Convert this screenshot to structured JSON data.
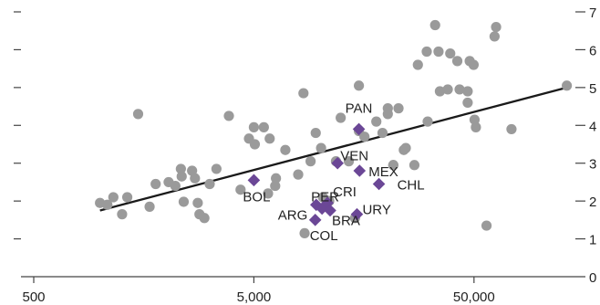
{
  "chart_data": {
    "type": "scatter",
    "title": "",
    "xlabel": "",
    "ylabel": "",
    "x_scale": "log",
    "xlim": [
      500,
      150000
    ],
    "ylim": [
      0,
      7
    ],
    "x_ticks": [
      {
        "value": 500,
        "label": "500"
      },
      {
        "value": 5000,
        "label": "5,000"
      },
      {
        "value": 50000,
        "label": "50,000"
      }
    ],
    "y_ticks": [
      0,
      1,
      2,
      3,
      4,
      5,
      6,
      7
    ],
    "y_tick_labels": [
      "0",
      "1",
      "2",
      "3",
      "4",
      "5",
      "6",
      "7"
    ],
    "left_axis_ticks": [
      1,
      2,
      3,
      4,
      5,
      6,
      7
    ],
    "grid": false,
    "colors": {
      "other": "#9a9a9a",
      "highlight": "#6b4796",
      "trend": "#1a1a1a",
      "axis": "#444444"
    },
    "series": [
      {
        "marker": "circle",
        "points": [
          [
            1000,
            1.95
          ],
          [
            1080,
            1.9
          ],
          [
            1150,
            2.1
          ],
          [
            1260,
            1.65
          ],
          [
            1330,
            2.1
          ],
          [
            1490,
            4.3
          ],
          [
            1680,
            1.85
          ],
          [
            1790,
            2.45
          ],
          [
            2050,
            2.5
          ],
          [
            2200,
            2.4
          ],
          [
            2330,
            2.85
          ],
          [
            2350,
            2.65
          ],
          [
            2620,
            2.8
          ],
          [
            2700,
            2.6
          ],
          [
            2400,
            1.98
          ],
          [
            2780,
            1.95
          ],
          [
            2830,
            1.65
          ],
          [
            2980,
            1.55
          ],
          [
            3150,
            2.45
          ],
          [
            3380,
            2.85
          ],
          [
            3850,
            4.25
          ],
          [
            4350,
            2.3
          ],
          [
            4750,
            3.65
          ],
          [
            5000,
            3.95
          ],
          [
            5050,
            3.5
          ],
          [
            5550,
            3.95
          ],
          [
            5800,
            2.2
          ],
          [
            5900,
            3.65
          ],
          [
            6250,
            2.4
          ],
          [
            6300,
            2.6
          ],
          [
            6950,
            3.35
          ],
          [
            7950,
            2.7
          ],
          [
            8400,
            4.85
          ],
          [
            8500,
            1.15
          ],
          [
            9050,
            3.05
          ],
          [
            9550,
            3.8
          ],
          [
            10100,
            3.4
          ],
          [
            10300,
            2.1
          ],
          [
            11000,
            2.0
          ],
          [
            11800,
            3.05
          ],
          [
            12400,
            4.2
          ],
          [
            13500,
            3.05
          ],
          [
            15000,
            5.05
          ],
          [
            15000,
            3.85
          ],
          [
            15900,
            3.7
          ],
          [
            14400,
            1.55
          ],
          [
            18000,
            4.1
          ],
          [
            19200,
            3.8
          ],
          [
            20300,
            4.45
          ],
          [
            20300,
            4.3
          ],
          [
            21500,
            2.95
          ],
          [
            21500,
            2.95
          ],
          [
            22700,
            4.45
          ],
          [
            24000,
            3.35
          ],
          [
            24500,
            3.4
          ],
          [
            26800,
            2.95
          ],
          [
            27800,
            5.6
          ],
          [
            30500,
            5.95
          ],
          [
            30800,
            4.1
          ],
          [
            33300,
            6.65
          ],
          [
            34500,
            5.95
          ],
          [
            35000,
            4.9
          ],
          [
            38000,
            4.95
          ],
          [
            39000,
            5.9
          ],
          [
            42000,
            5.7
          ],
          [
            43000,
            4.95
          ],
          [
            46800,
            4.9
          ],
          [
            46800,
            4.6
          ],
          [
            47800,
            5.7
          ],
          [
            49800,
            5.6
          ],
          [
            50300,
            4.15
          ],
          [
            51000,
            3.95
          ],
          [
            57000,
            1.35
          ],
          [
            62000,
            6.35
          ],
          [
            63000,
            6.6
          ],
          [
            74000,
            3.9
          ],
          [
            132000,
            5.05
          ]
        ]
      },
      {
        "marker": "diamond",
        "points": [
          {
            "x": 5000,
            "y": 2.55,
            "label": "BOL"
          },
          {
            "x": 9600,
            "y": 1.9,
            "label": "ARG"
          },
          {
            "x": 10200,
            "y": 1.8,
            "label": "PER"
          },
          {
            "x": 10800,
            "y": 1.95,
            "label": "CRI"
          },
          {
            "x": 11100,
            "y": 1.75,
            "label": "BRA"
          },
          {
            "x": 9500,
            "y": 1.5,
            "label": "COL"
          },
          {
            "x": 12000,
            "y": 3.0,
            "label": "VEN"
          },
          {
            "x": 15000,
            "y": 3.9,
            "label": "PAN"
          },
          {
            "x": 15100,
            "y": 2.8,
            "label": "MEX"
          },
          {
            "x": 14700,
            "y": 1.65,
            "label": "URY"
          },
          {
            "x": 18500,
            "y": 2.45,
            "label": "CHL"
          }
        ]
      }
    ],
    "trend_line": {
      "x": [
        1000,
        132000
      ],
      "y": [
        1.75,
        5.0
      ]
    }
  }
}
